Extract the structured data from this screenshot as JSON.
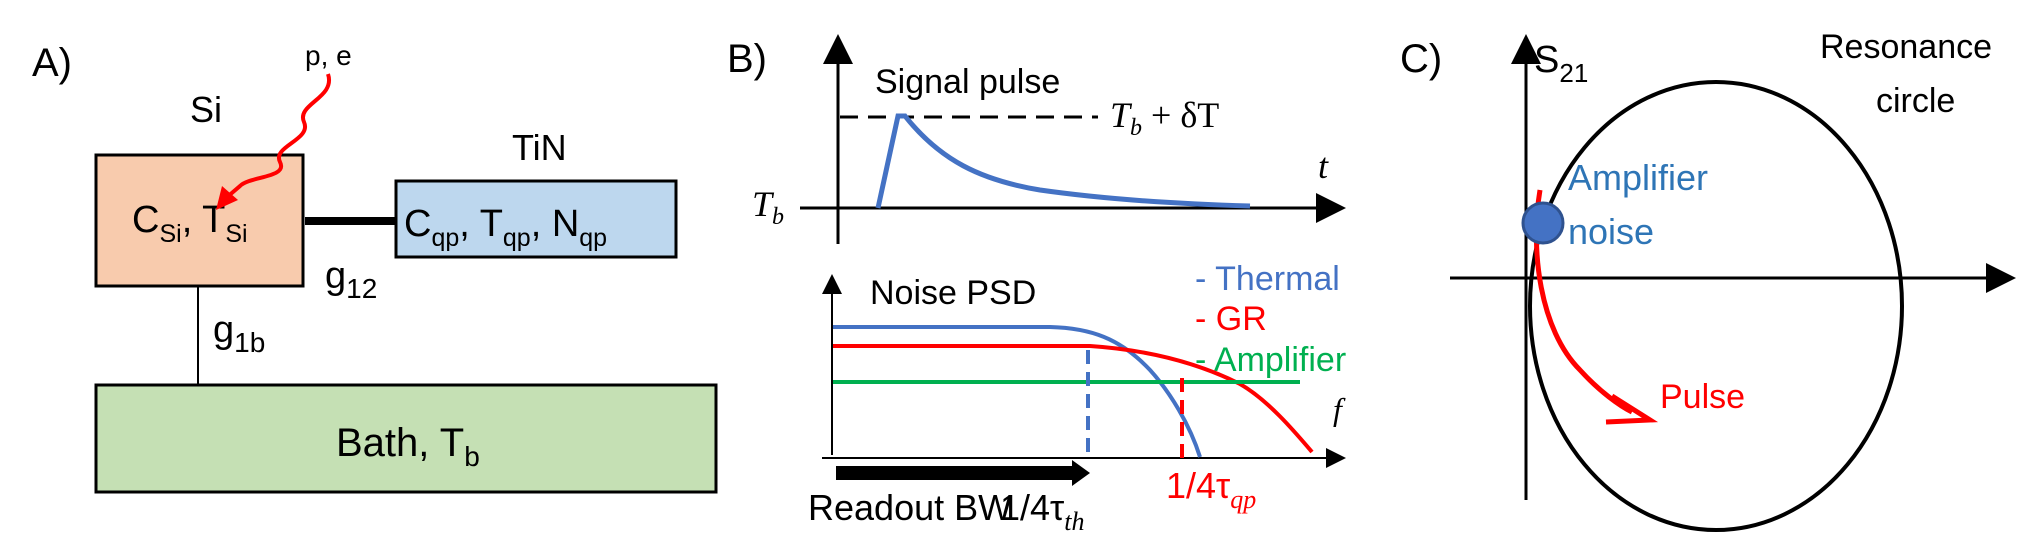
{
  "colors": {
    "si_box": "#f8cbad",
    "tin_box": "#bdd7ee",
    "bath_box": "#c5e0b4",
    "outline": "#000000",
    "red": "#ff0000",
    "blue": "#4472c4",
    "green": "#00b050",
    "dark_blue_text": "#2e75b6"
  },
  "panelA": {
    "label": "A)",
    "si_label": "Si",
    "tin_label": "TiN",
    "particle": "p, e",
    "si_box": {
      "base1": "C",
      "sub1": "Si",
      "sep": ", T",
      "sub2": "Si"
    },
    "tin_box": {
      "base1": "C",
      "sub1": "qp",
      "sep1": ", T",
      "sub2": "qp",
      "sep2": ", N",
      "sub3": "qp"
    },
    "g12": {
      "base": "g",
      "sub": "12"
    },
    "g1b": {
      "base": "g",
      "sub": "1b"
    },
    "bath": {
      "base": "Bath, T",
      "sub": "b"
    }
  },
  "panelB": {
    "label": "B)",
    "signal_pulse": "Signal pulse",
    "tb_plus": "T",
    "tb_plus_sub": "b",
    "tb_plus_rest": " + δT",
    "t_axis": "t",
    "tb_left": "T",
    "tb_left_sub": "b",
    "noise_psd": "Noise PSD",
    "legend_thermal": "- Thermal",
    "legend_gr": "- GR",
    "legend_amp": "- Amplifier",
    "f_axis": "f",
    "readout_bw": "Readout BW",
    "tau_th": "1/4τ",
    "tau_th_sub": "th",
    "tau_qp": "1/4τ",
    "tau_qp_sub": "qp"
  },
  "panelC": {
    "label": "C)",
    "s21": "S",
    "s21_sub": "21",
    "resonance1": "Resonance",
    "resonance2": "circle",
    "amp1": "Amplifier",
    "amp2": "noise",
    "pulse": "Pulse"
  }
}
